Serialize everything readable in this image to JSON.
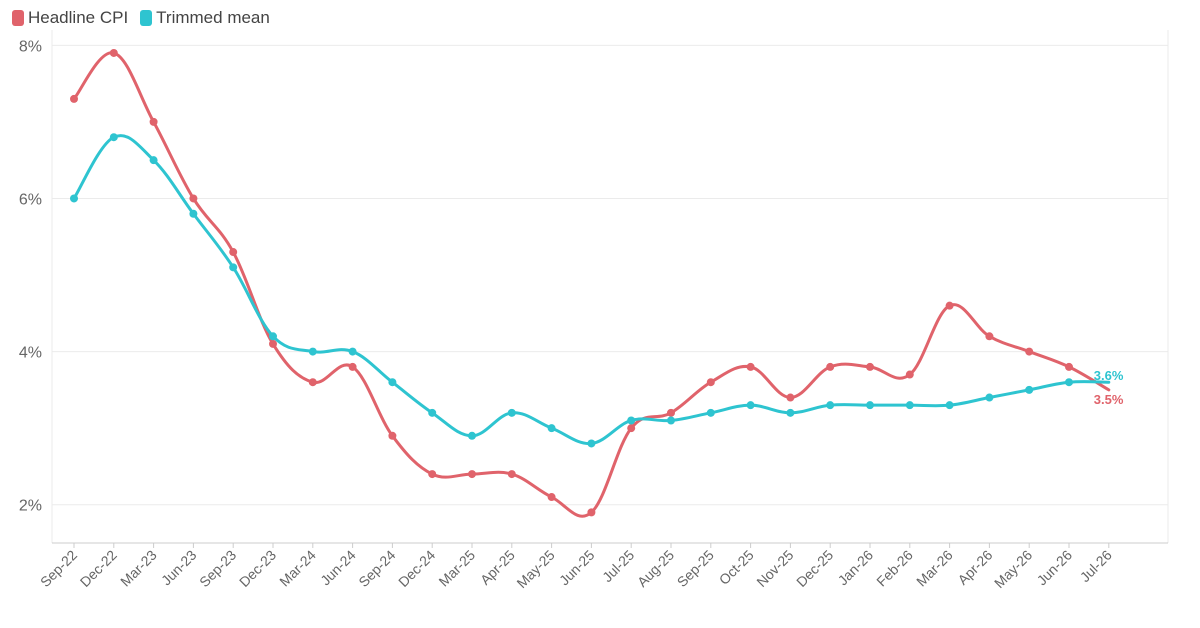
{
  "colors": {
    "headline": "#e0636b",
    "trimmed": "#2ec4d0",
    "grid": "#ebebeb",
    "axis_text": "#666666"
  },
  "legend": {
    "items": [
      {
        "label": "Headline CPI",
        "color": "#e0636b"
      },
      {
        "label": "Trimmed mean",
        "color": "#2ec4d0"
      }
    ],
    "placement": "top-left"
  },
  "chart_data": {
    "type": "line",
    "title": "",
    "xlabel": "",
    "ylabel": "",
    "ylim": [
      1.5,
      8.2
    ],
    "y_ticks": [
      {
        "value": 2,
        "label": "2%"
      },
      {
        "value": 4,
        "label": "4%"
      },
      {
        "value": 6,
        "label": "6%"
      },
      {
        "value": 8,
        "label": "8%"
      }
    ],
    "grid": true,
    "categories": [
      "Sep-22",
      "Dec-22",
      "Mar-23",
      "Jun-23",
      "Sep-23",
      "Dec-23",
      "Mar-24",
      "Jun-24",
      "Sep-24",
      "Dec-24",
      "Mar-25",
      "Apr-25",
      "May-25",
      "Jun-25",
      "Jul-25",
      "Aug-25",
      "Sep-25",
      "Oct-25",
      "Nov-25",
      "Dec-25",
      "Jan-26",
      "Feb-26",
      "Mar-26",
      "Apr-26",
      "May-26",
      "Jun-26",
      "Jul-26"
    ],
    "series": [
      {
        "name": "Headline CPI",
        "color": "#e0636b",
        "points": [
          [
            "Sep-22",
            7.3
          ],
          [
            "Dec-22",
            7.9
          ],
          [
            "Mar-23",
            7.0
          ],
          [
            "Jun-23",
            6.0
          ],
          [
            "Sep-23",
            5.3
          ],
          [
            "Dec-23",
            4.1
          ],
          [
            "Mar-24",
            3.6
          ],
          [
            "Jun-24",
            3.8
          ],
          [
            "Sep-24",
            2.9
          ],
          [
            "Dec-24",
            2.4
          ],
          [
            "Mar-25",
            2.4
          ],
          [
            "Apr-25",
            2.4
          ],
          [
            "May-25",
            2.1
          ],
          [
            "Jun-25",
            1.9
          ],
          [
            "Jul-25",
            3.0
          ],
          [
            "Aug-25",
            3.2
          ],
          [
            "Sep-25",
            3.6
          ],
          [
            "Oct-25",
            3.8
          ],
          [
            "Nov-25",
            3.4
          ],
          [
            "Dec-25",
            3.8
          ],
          [
            "Jan-26",
            3.8
          ],
          [
            "Feb-26",
            3.7
          ],
          [
            "Mar-26",
            4.6
          ],
          [
            "Apr-26",
            4.2
          ],
          [
            "May-26",
            4.0
          ],
          [
            "Jun-26",
            3.8
          ],
          [
            "Jul-26",
            3.5
          ]
        ],
        "end_label": "3.5%"
      },
      {
        "name": "Trimmed mean",
        "color": "#2ec4d0",
        "points": [
          [
            "Sep-22",
            6.0
          ],
          [
            "Dec-22",
            6.8
          ],
          [
            "Mar-23",
            6.5
          ],
          [
            "Jun-23",
            5.8
          ],
          [
            "Sep-23",
            5.1
          ],
          [
            "Dec-23",
            4.2
          ],
          [
            "Mar-24",
            4.0
          ],
          [
            "Jun-24",
            4.0
          ],
          [
            "Sep-24",
            3.6
          ],
          [
            "Dec-24",
            3.2
          ],
          [
            "Mar-25",
            2.9
          ],
          [
            "Apr-25",
            3.2
          ],
          [
            "May-25",
            3.0
          ],
          [
            "Jun-25",
            2.8
          ],
          [
            "Jul-25",
            3.1
          ],
          [
            "Aug-25",
            3.1
          ],
          [
            "Sep-25",
            3.2
          ],
          [
            "Oct-25",
            3.3
          ],
          [
            "Nov-25",
            3.2
          ],
          [
            "Dec-25",
            3.3
          ],
          [
            "Jan-26",
            3.3
          ],
          [
            "Feb-26",
            3.3
          ],
          [
            "Mar-26",
            3.3
          ],
          [
            "Apr-26",
            3.4
          ],
          [
            "May-26",
            3.5
          ],
          [
            "Jun-26",
            3.6
          ],
          [
            "Jul-26",
            3.6
          ]
        ],
        "end_label": "3.6%"
      }
    ]
  }
}
